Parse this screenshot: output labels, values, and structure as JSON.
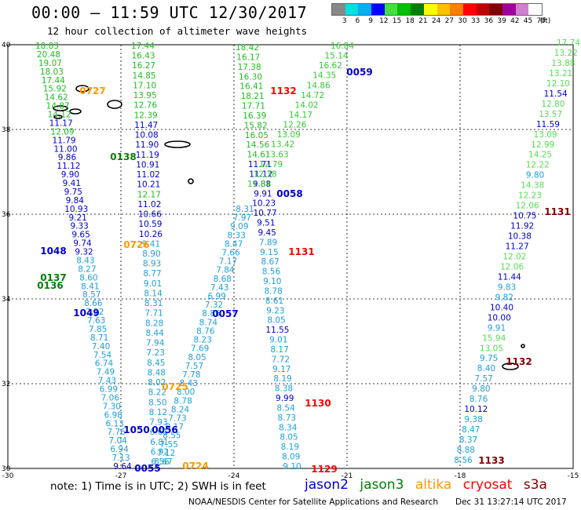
{
  "header": {
    "title": "00:00 – 11:59 UTC 12/30/2017",
    "subtitle": "12 hour collection of altimeter wave heights"
  },
  "colorbar": {
    "labels": [
      "3",
      "6",
      "9",
      "12",
      "15",
      "18",
      "21",
      "24",
      "27",
      "30",
      "33",
      "36",
      "39",
      "42",
      "45",
      "70",
      "(ft)"
    ],
    "colors": [
      "#888888",
      "#00e0e0",
      "#00b0f0",
      "#0000ff",
      "#40e040",
      "#00c000",
      "#008000",
      "#ffff00",
      "#ffc000",
      "#ff8000",
      "#ff0000",
      "#c00000",
      "#800000",
      "#a000a0",
      "#d080d0",
      "#ffffff"
    ]
  },
  "axes": {
    "lon_labels": [
      "-30",
      "-27",
      "-24",
      "-21",
      "-18",
      "-15"
    ],
    "lat_labels": [
      "40",
      "38",
      "36",
      "34",
      "32",
      "30"
    ]
  },
  "passes": [
    {
      "time": "0727",
      "color": "#ff9900"
    },
    {
      "time": "0138",
      "color": "#008000"
    },
    {
      "time": "0726",
      "color": "#ff9900"
    },
    {
      "time": "1048",
      "color": "#0000cc"
    },
    {
      "time": "0137",
      "color": "#008000"
    },
    {
      "time": "0136",
      "color": "#008000"
    },
    {
      "time": "1049",
      "color": "#0000cc"
    },
    {
      "time": "1132",
      "color": "#ff0000"
    },
    {
      "time": "0059",
      "color": "#0000cc"
    },
    {
      "time": "0058",
      "color": "#0000cc"
    },
    {
      "time": "1131",
      "color": "#ff0000"
    },
    {
      "time": "0057",
      "color": "#0000cc"
    },
    {
      "time": "0725",
      "color": "#ff9900"
    },
    {
      "time": "1050",
      "color": "#0000cc"
    },
    {
      "time": "0056",
      "color": "#0000cc"
    },
    {
      "time": "0055",
      "color": "#0000cc"
    },
    {
      "time": "0724",
      "color": "#ff9900"
    },
    {
      "time": "1130",
      "color": "#ff0000"
    },
    {
      "time": "1129",
      "color": "#ff0000"
    },
    {
      "time": "1131",
      "color": "#800000"
    },
    {
      "time": "1132",
      "color": "#800000"
    },
    {
      "time": "1133",
      "color": "#800000"
    }
  ],
  "tracks": [
    {
      "name": "track-a",
      "values": [
        "18.83",
        "20.48",
        "19.07",
        "18.03",
        "17.44",
        "15.92",
        "14.62",
        "14.87",
        "14.12",
        "11.17",
        "12.09",
        "11.79",
        "11.00",
        "9.86",
        "11.12",
        "9.90",
        "9.41",
        "9.75",
        "9.84",
        "10.93",
        "9.21",
        "9.33",
        "9.65",
        "9.74",
        "9.32",
        "8.43",
        "8.27",
        "8.60",
        "8.41",
        "8.57",
        "8.66",
        "7.22",
        "7.63",
        "7.85",
        "8.71",
        "7.40",
        "7.54",
        "6.74",
        "7.49",
        "7.43",
        "6.99",
        "7.06",
        "7.30",
        "6.98",
        "6.13",
        "7.76",
        "7.04",
        "6.94",
        "7.13",
        "9.64"
      ]
    },
    {
      "name": "track-b",
      "values": [
        "17.44",
        "16.43",
        "16.27",
        "14.85",
        "17.10",
        "13.95",
        "12.76",
        "12.39",
        "11.47",
        "10.08",
        "11.90",
        "11.19",
        "10.91",
        "11.02",
        "10.21",
        "12.17",
        "11.02",
        "10.66",
        "10.59",
        "10.26",
        "9.41",
        "8.90",
        "8.93",
        "8.77",
        "9.01",
        "8.14",
        "8.31",
        "7.71",
        "8.28",
        "8.44",
        "7.94",
        "7.23",
        "8.45",
        "8.48",
        "8.02",
        "8.22",
        "8.50",
        "8.12",
        "7.93",
        "6.61",
        "6.81",
        "6.92",
        "6.56"
      ]
    },
    {
      "name": "track-c",
      "values": [
        "8.31",
        "7.97",
        "9.09",
        "8.33",
        "8.47",
        "7.66",
        "7.17",
        "7.84",
        "8.68",
        "7.43",
        "6.99",
        "7.32",
        "8.86",
        "8.74",
        "8.76",
        "8.23",
        "7.69",
        "8.05",
        "7.57",
        "7.78",
        "8.43",
        "8.00",
        "8.78",
        "8.24",
        "7.73",
        "8.17",
        "8.55",
        "7.55",
        "7.12",
        "8.67"
      ]
    },
    {
      "name": "track-d",
      "values": [
        "18.42",
        "16.17",
        "17.38",
        "16.30",
        "16.41",
        "18.21",
        "17.71",
        "16.39",
        "15.82",
        "16.05",
        "14.56",
        "14.61",
        "11.71",
        "11.12",
        "9.88",
        "9.91",
        "10.23",
        "10.77",
        "9.51",
        "9.45",
        "7.89",
        "9.15",
        "8.67",
        "8.56",
        "9.10",
        "8.78",
        "8.61",
        "9.23",
        "8.05",
        "11.55",
        "9.01",
        "8.17",
        "7.72",
        "9.17",
        "8.19",
        "8.38",
        "9.99",
        "8.54",
        "8.73",
        "8.34",
        "8.05",
        "8.19",
        "8.09",
        "9.10"
      ]
    },
    {
      "name": "track-e",
      "values": [
        "16.84",
        "15.14",
        "16.62",
        "14.35",
        "14.86",
        "14.72",
        "14.02",
        "14.17",
        "12.26",
        "13.09",
        "13.42",
        "13.63",
        "12.79",
        "12.38",
        "11.84"
      ]
    },
    {
      "name": "track-f",
      "values": [
        "17.74",
        "13.22",
        "13.88",
        "13.21",
        "12.10",
        "11.54",
        "12.80",
        "13.57",
        "11.59",
        "13.09",
        "12.99",
        "14.25",
        "12.22",
        "9.80",
        "14.38",
        "12.23",
        "12.06",
        "10.75",
        "11.92",
        "10.38",
        "11.27",
        "12.02",
        "12.06",
        "11.44",
        "9.83",
        "9.82",
        "10.40",
        "10.00",
        "9.91",
        "15.94",
        "13.05",
        "9.75",
        "8.40",
        "7.57",
        "9.80",
        "8.76",
        "10.12",
        "9.38",
        "8.47",
        "8.37",
        "8.88",
        "8.56"
      ]
    }
  ],
  "legend": {
    "note": "note: 1) Time is in UTC; 2) SWH is in feet",
    "jason2": "jason2",
    "jason3": "jason3",
    "altika": "altika",
    "cryosat": "cryosat",
    "s3a": "s3a",
    "colors": {
      "jason2": "#0000cc",
      "jason3": "#008000",
      "altika": "#ff9900",
      "cryosat": "#ff0000",
      "s3a": "#800000"
    }
  },
  "footer": {
    "center": "NOAA/NESDIS Center for Satellite Applications and Research",
    "date": "Dec 31 13:27:14 UTC 2017"
  }
}
